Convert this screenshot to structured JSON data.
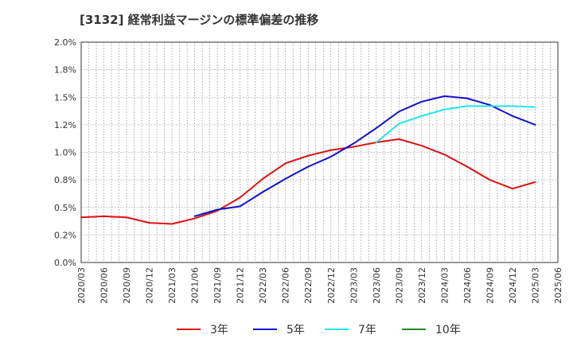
{
  "title": "[3132]  経常利益マージンの標準偏差の推移",
  "chart_data": {
    "type": "line",
    "title": "[3132]  経常利益マージンの標準偏差の推移",
    "xlabel": "",
    "ylabel": "",
    "ylim": [
      0,
      2.0
    ],
    "grid": true,
    "legend_position": "bottom",
    "y_ticks": [
      "0.0%",
      "0.2%",
      "0.5%",
      "0.8%",
      "1.0%",
      "1.2%",
      "1.5%",
      "1.8%",
      "2.0%"
    ],
    "y_tick_values": [
      0,
      0.25,
      0.5,
      0.75,
      1.0,
      1.25,
      1.5,
      1.75,
      2.0
    ],
    "x": [
      "2020/03",
      "2020/06",
      "2020/09",
      "2020/12",
      "2021/03",
      "2021/06",
      "2021/09",
      "2021/12",
      "2022/03",
      "2022/06",
      "2022/09",
      "2022/12",
      "2023/03",
      "2023/06",
      "2023/09",
      "2023/12",
      "2024/03",
      "2024/06",
      "2024/09",
      "2024/12",
      "2025/03",
      "2025/06"
    ],
    "series": [
      {
        "name": "3年",
        "color": "#dd1111",
        "values": [
          0.41,
          0.42,
          0.41,
          0.36,
          0.35,
          0.4,
          0.47,
          0.59,
          0.76,
          0.9,
          0.97,
          1.02,
          1.05,
          1.09,
          1.12,
          1.06,
          0.98,
          0.87,
          0.75,
          0.67,
          0.73,
          null
        ]
      },
      {
        "name": "5年",
        "color": "#1111cc",
        "values": [
          null,
          null,
          null,
          null,
          null,
          0.42,
          0.48,
          0.51,
          0.64,
          0.76,
          0.87,
          0.96,
          1.08,
          1.22,
          1.37,
          1.46,
          1.51,
          1.49,
          1.43,
          1.33,
          1.25,
          null
        ]
      },
      {
        "name": "7年",
        "color": "#22e5ee",
        "values": [
          null,
          null,
          null,
          null,
          null,
          null,
          null,
          null,
          null,
          null,
          null,
          null,
          null,
          1.09,
          1.26,
          1.33,
          1.39,
          1.42,
          1.42,
          1.42,
          1.41,
          null
        ]
      },
      {
        "name": "10年",
        "color": "#228b22",
        "values": [
          null,
          null,
          null,
          null,
          null,
          null,
          null,
          null,
          null,
          null,
          null,
          null,
          null,
          null,
          null,
          null,
          null,
          null,
          null,
          null,
          null,
          null
        ]
      }
    ]
  }
}
